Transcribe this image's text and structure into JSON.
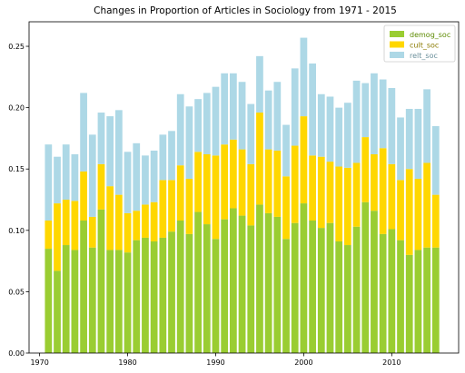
{
  "chart_data": {
    "type": "bar",
    "stacked": true,
    "title": "Changes in Proportion of Articles in Sociology from 1971 - 2015",
    "xlabel": "",
    "ylabel": "",
    "x": [
      1971,
      1972,
      1973,
      1974,
      1975,
      1976,
      1977,
      1978,
      1979,
      1980,
      1981,
      1982,
      1983,
      1984,
      1985,
      1986,
      1987,
      1988,
      1989,
      1990,
      1991,
      1992,
      1993,
      1994,
      1995,
      1996,
      1997,
      1998,
      1999,
      2000,
      2001,
      2002,
      2003,
      2004,
      2005,
      2006,
      2007,
      2008,
      2009,
      2010,
      2011,
      2012,
      2013,
      2014,
      2015
    ],
    "xlim": [
      1968.8,
      2017.6
    ],
    "ylim": [
      0,
      0.27
    ],
    "x_ticks": [
      1970,
      1980,
      1990,
      2000,
      2010
    ],
    "x_tick_labels": [
      "1970",
      "1980",
      "1990",
      "2000",
      "2010"
    ],
    "y_ticks": [
      0.0,
      0.05,
      0.1,
      0.15,
      0.2,
      0.25
    ],
    "y_tick_labels": [
      "0.00",
      "0.05",
      "0.10",
      "0.15",
      "0.20",
      "0.25"
    ],
    "grid": false,
    "legend_position": "top-right",
    "series": [
      {
        "name": "demog_soc",
        "color": "#9acd32",
        "values": [
          0.085,
          0.067,
          0.088,
          0.084,
          0.108,
          0.086,
          0.117,
          0.084,
          0.084,
          0.082,
          0.092,
          0.094,
          0.091,
          0.094,
          0.099,
          0.108,
          0.097,
          0.115,
          0.105,
          0.093,
          0.109,
          0.118,
          0.112,
          0.104,
          0.121,
          0.114,
          0.111,
          0.093,
          0.106,
          0.122,
          0.108,
          0.102,
          0.106,
          0.091,
          0.088,
          0.103,
          0.123,
          0.116,
          0.097,
          0.101,
          0.092,
          0.08,
          0.084,
          0.086,
          0.086
        ]
      },
      {
        "name": "cult_soc",
        "color": "#ffd700",
        "values": [
          0.023,
          0.055,
          0.037,
          0.04,
          0.04,
          0.025,
          0.037,
          0.052,
          0.045,
          0.032,
          0.024,
          0.027,
          0.032,
          0.047,
          0.042,
          0.045,
          0.045,
          0.049,
          0.057,
          0.068,
          0.061,
          0.056,
          0.054,
          0.05,
          0.075,
          0.052,
          0.054,
          0.051,
          0.063,
          0.071,
          0.053,
          0.058,
          0.05,
          0.061,
          0.063,
          0.052,
          0.053,
          0.046,
          0.07,
          0.053,
          0.049,
          0.07,
          0.058,
          0.069,
          0.043
        ]
      },
      {
        "name": "relt_soc",
        "color": "#add8e6",
        "values": [
          0.062,
          0.038,
          0.045,
          0.038,
          0.064,
          0.067,
          0.042,
          0.057,
          0.069,
          0.05,
          0.055,
          0.04,
          0.042,
          0.037,
          0.04,
          0.058,
          0.059,
          0.043,
          0.05,
          0.056,
          0.058,
          0.054,
          0.055,
          0.049,
          0.046,
          0.048,
          0.056,
          0.042,
          0.063,
          0.064,
          0.075,
          0.051,
          0.053,
          0.048,
          0.053,
          0.067,
          0.044,
          0.066,
          0.056,
          0.062,
          0.051,
          0.049,
          0.057,
          0.06,
          0.056
        ]
      }
    ]
  }
}
